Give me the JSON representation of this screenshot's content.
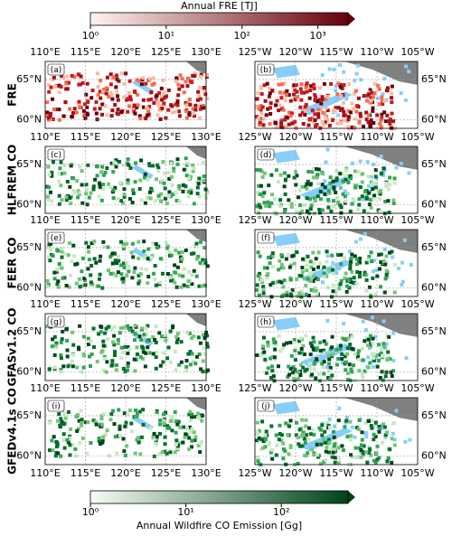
{
  "colorbar_top": {
    "label": "Annual FRE [TJ]",
    "scale": "log",
    "lim": [
      1,
      2500
    ],
    "ticks": [
      {
        "value": 1,
        "label": "10⁰"
      },
      {
        "value": 10,
        "label": "10¹"
      },
      {
        "value": 100,
        "label": "10²"
      },
      {
        "value": 1000,
        "label": "10³"
      }
    ],
    "color": "#67000d"
  },
  "colorbar_bottom": {
    "label": "Annual Wildfire CO Emission [Gg]",
    "scale": "log",
    "lim": [
      1,
      500
    ],
    "ticks": [
      {
        "value": 1,
        "label": "10⁰"
      },
      {
        "value": 10,
        "label": "10¹"
      },
      {
        "value": 100,
        "label": "10²"
      }
    ],
    "color": "#00441b"
  },
  "rows": [
    {
      "label": "FRE",
      "panels": [
        "(a)",
        "(b)"
      ]
    },
    {
      "label": "HLFREM CO",
      "panels": [
        "(c)",
        "(d)"
      ]
    },
    {
      "label": "FEER CO",
      "panels": [
        "(e)",
        "(f)"
      ]
    },
    {
      "label": "GFASv1.2 CO",
      "panels": [
        "(g)",
        "(h)"
      ]
    },
    {
      "label": "GFEDv4.1s CO",
      "panels": [
        "(i)",
        "(j)"
      ]
    }
  ],
  "left_map": {
    "lon_labels": [
      "110°E",
      "115°E",
      "120°E",
      "125°E",
      "130°E"
    ],
    "lat_labels": [
      "65°N",
      "60°N"
    ]
  },
  "right_map": {
    "lon_labels": [
      "125°W",
      "120°W",
      "115°W",
      "110°W",
      "105°W"
    ],
    "lat_labels": [
      "65°N",
      "60°N"
    ]
  }
}
